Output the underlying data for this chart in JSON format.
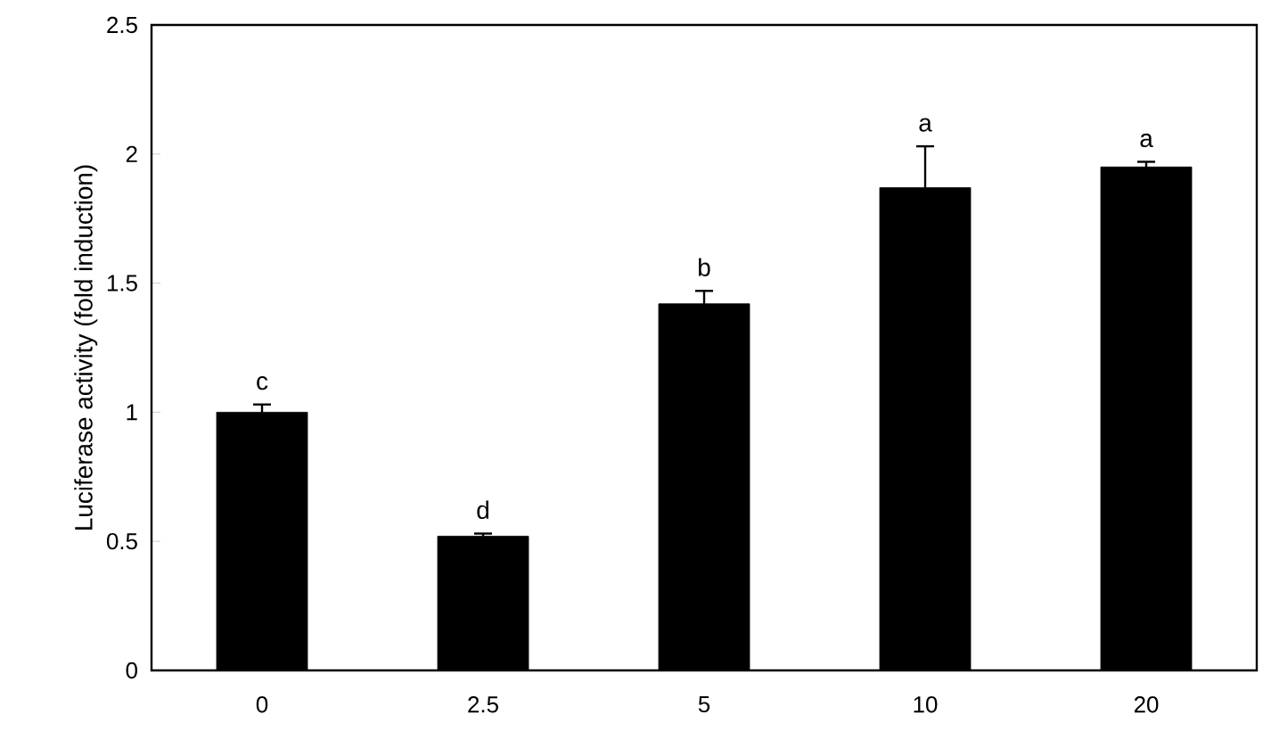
{
  "chart_data": {
    "type": "bar",
    "ylabel": "Luciferase activity (fold induction)",
    "categories": [
      "0",
      "2.5",
      "5",
      "10",
      "20"
    ],
    "values": [
      1.0,
      0.52,
      1.42,
      1.87,
      1.95
    ],
    "errors": [
      0.03,
      0.01,
      0.05,
      0.16,
      0.02
    ],
    "color": "#000000",
    "ylim": [
      0,
      2.5
    ],
    "yticks": [
      0,
      0.5,
      1,
      1.5,
      2,
      2.5
    ],
    "grid": false,
    "annotations": [
      {
        "text": "c",
        "x": "0",
        "y": 1.03
      },
      {
        "text": "d",
        "x": "2.5",
        "y": 0.53
      },
      {
        "text": "b",
        "x": "5",
        "y": 1.47
      },
      {
        "text": "a",
        "x": "10",
        "y": 2.03
      },
      {
        "text": "a",
        "x": "20",
        "y": 1.97
      }
    ]
  }
}
